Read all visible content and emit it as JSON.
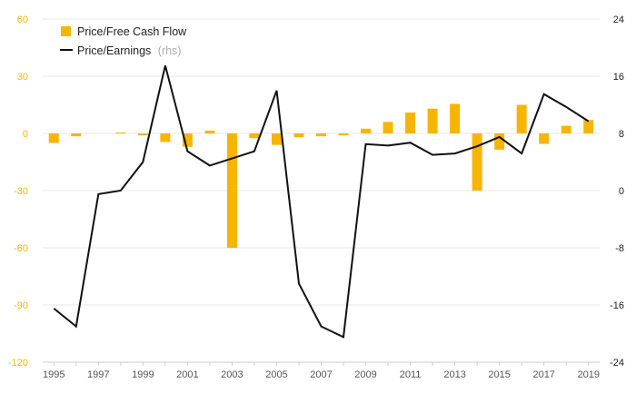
{
  "chart_data": {
    "type": "bar+line",
    "title": "",
    "xlabel": "",
    "ylabel_left": "",
    "ylabel_right": "",
    "x": [
      1995,
      1996,
      1997,
      1998,
      1999,
      2000,
      2001,
      2002,
      2003,
      2004,
      2005,
      2006,
      2007,
      2008,
      2009,
      2010,
      2011,
      2012,
      2013,
      2014,
      2015,
      2016,
      2017,
      2018,
      2019
    ],
    "x_ticks": [
      "1995",
      "1997",
      "1999",
      "2001",
      "2003",
      "2005",
      "2007",
      "2009",
      "2011",
      "2013",
      "2015",
      "2017",
      "2019"
    ],
    "y_left_ticks": [
      "60",
      "30",
      "0",
      "-30",
      "-60",
      "-90",
      "-120"
    ],
    "y_right_ticks": [
      "24",
      "16",
      "8",
      "0",
      "-8",
      "-16",
      "-24"
    ],
    "ylim_left": [
      -120,
      60
    ],
    "ylim_right": [
      -24,
      24
    ],
    "grid": true,
    "legend_position": "top-left",
    "series": [
      {
        "name": "Price/Free Cash Flow",
        "axis": "left",
        "kind": "bar",
        "color": "#f7b500",
        "values": [
          -5,
          -1.5,
          0,
          0.5,
          -1,
          -4.5,
          -7,
          1.5,
          -60,
          -2.5,
          -6,
          -2,
          -1.5,
          -1,
          2.5,
          6,
          11,
          13,
          15.5,
          -30,
          -8.5,
          15,
          -5.5,
          4,
          7
        ]
      },
      {
        "name": "Price/Earnings",
        "axis": "right",
        "kind": "line",
        "color": "#111111",
        "values": [
          -16.5,
          -19,
          -0.5,
          0,
          4,
          17.5,
          5.5,
          3.5,
          4.5,
          5.5,
          14,
          -13,
          -19,
          -20.5,
          6.5,
          6.3,
          6.7,
          5,
          5.2,
          6.2,
          7.5,
          5.2,
          13.5,
          11.7,
          9.7
        ]
      }
    ],
    "legend": {
      "bar_label": "Price/Free Cash Flow",
      "line_label": "Price/Earnings",
      "line_suffix": "(rhs)"
    }
  }
}
